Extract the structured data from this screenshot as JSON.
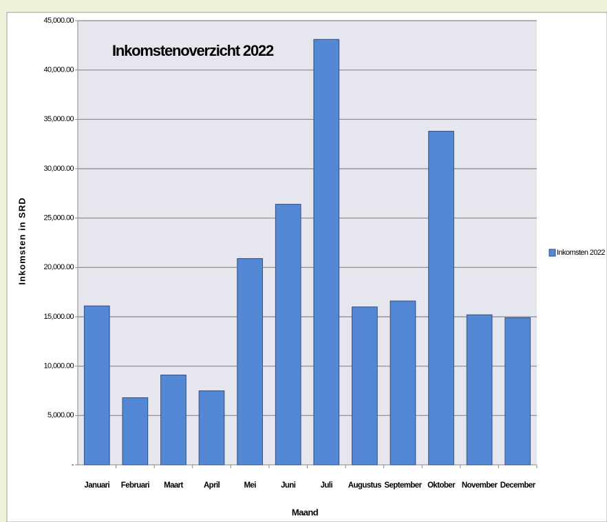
{
  "chart_data": {
    "type": "bar",
    "title": "Inkomstenoverzicht 2022",
    "x_label": "Maand",
    "y_label": "Inkomsten in SRD",
    "categories": [
      "Januari",
      "Februari",
      "Maart",
      "April",
      "Mei",
      "Juni",
      "Juli",
      "Augustus",
      "September",
      "Oktober",
      "November",
      "December"
    ],
    "series": [
      {
        "name": "Inkomsten 2022",
        "color": "#5588d4",
        "values": [
          16100,
          6800,
          9100,
          7500,
          20900,
          26400,
          43100,
          16000,
          16600,
          33800,
          15200,
          14900
        ]
      }
    ],
    "ylim": [
      0,
      45000
    ],
    "yticks": [
      {
        "value": 0,
        "label": "-"
      },
      {
        "value": 5000,
        "label": "5,000.00"
      },
      {
        "value": 10000,
        "label": "10,000.00"
      },
      {
        "value": 15000,
        "label": "15,000.00"
      },
      {
        "value": 20000,
        "label": "20,000.00"
      },
      {
        "value": 25000,
        "label": "25,000.00"
      },
      {
        "value": 30000,
        "label": "30,000.00"
      },
      {
        "value": 35000,
        "label": "35,000.00"
      },
      {
        "value": 40000,
        "label": "40,000.00"
      },
      {
        "value": 45000,
        "label": "45,000.00"
      }
    ],
    "grid": true,
    "legend": "right"
  }
}
